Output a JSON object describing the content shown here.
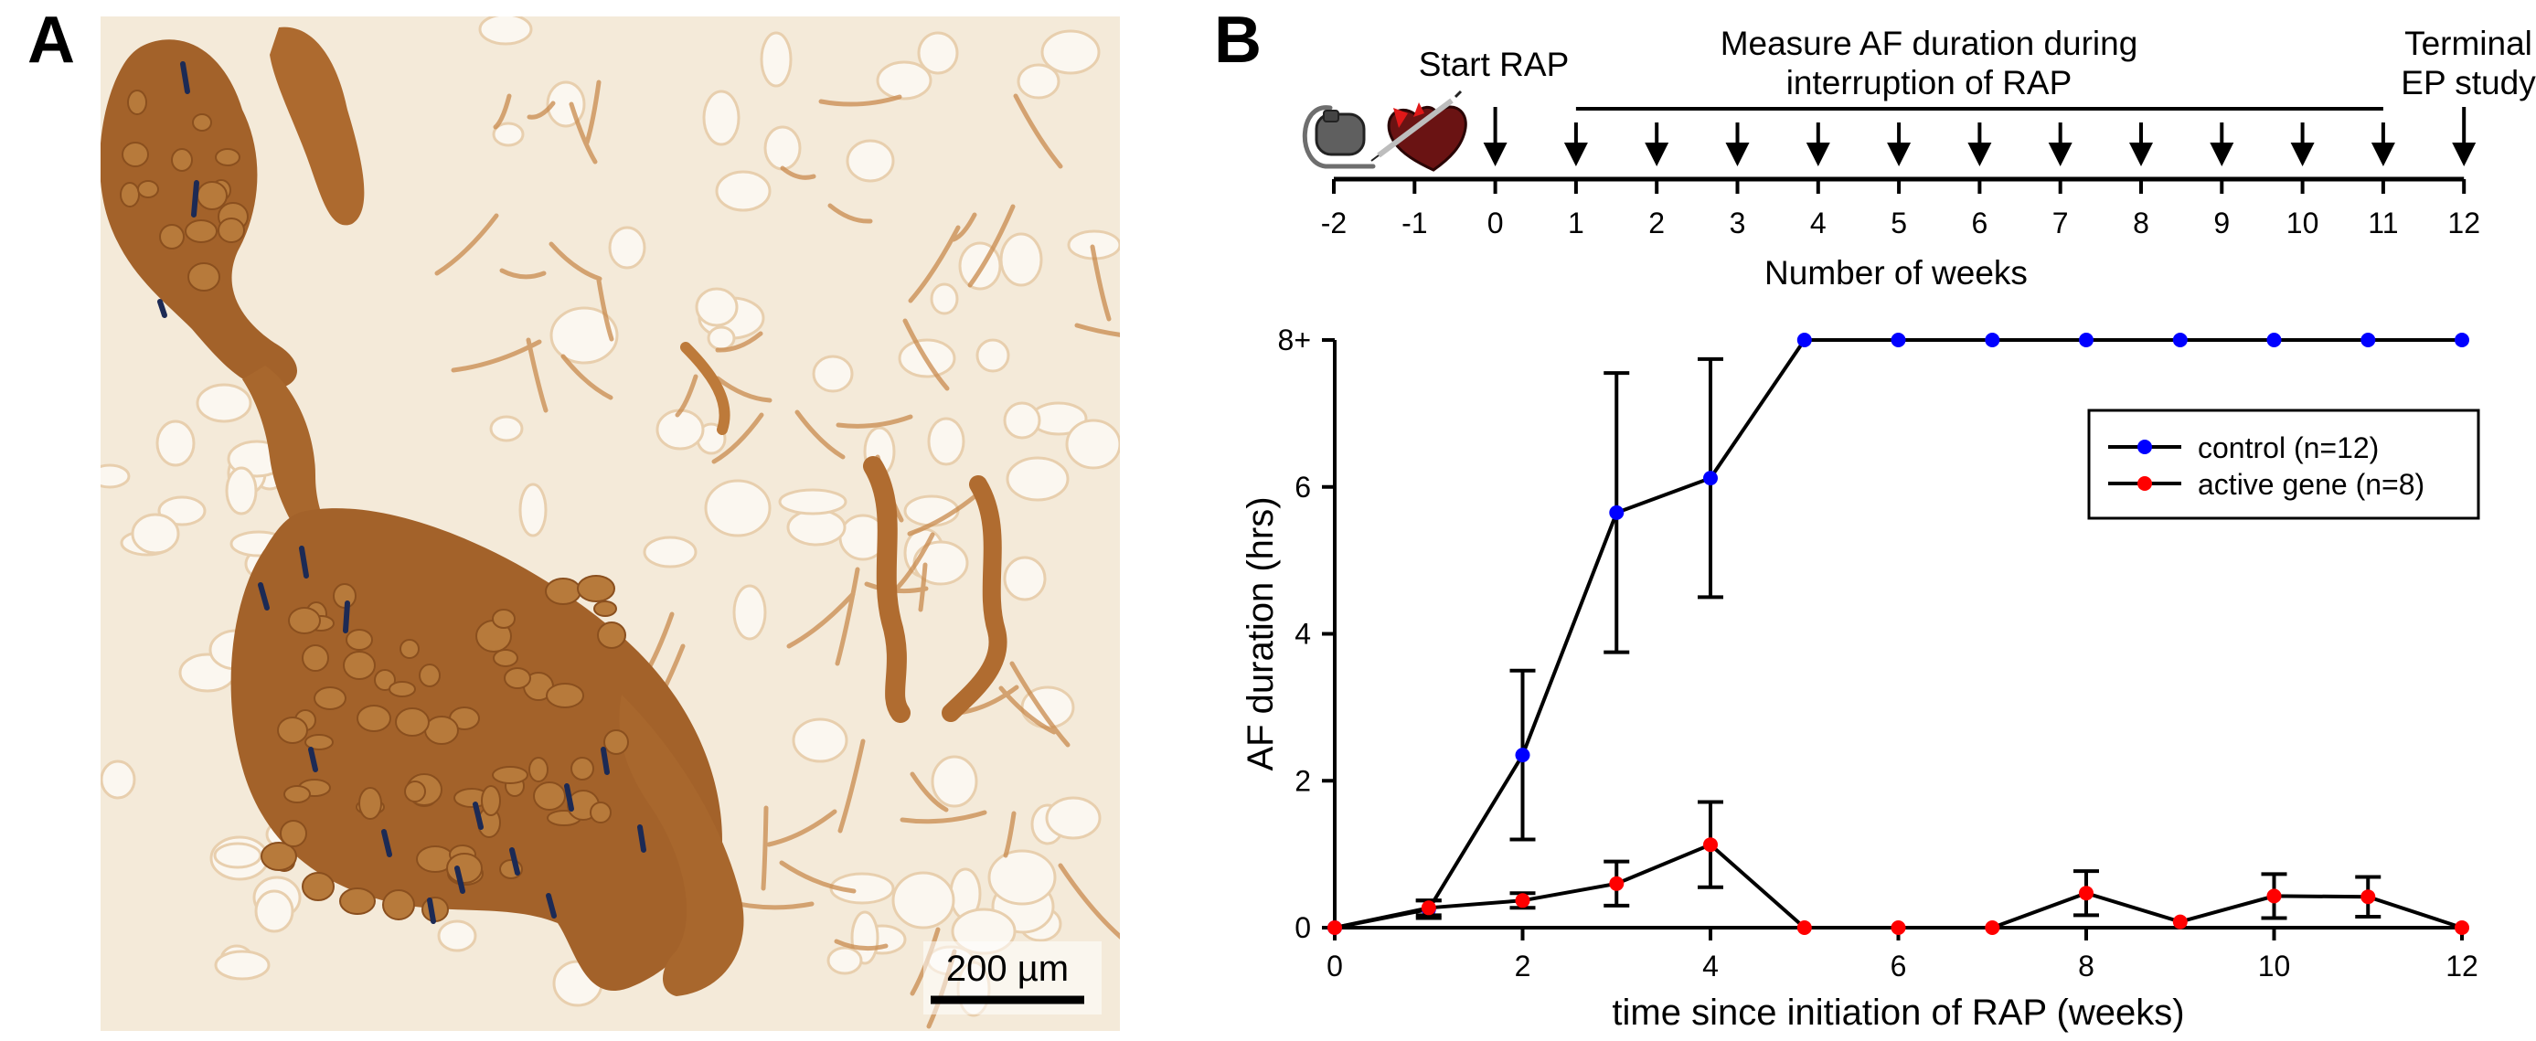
{
  "panel_a": {
    "letter": "A",
    "scale_bar_label": "200 µm",
    "colors": {
      "background": "#f4ead9",
      "tissue": "#a3622a",
      "tissue_dark": "#8a4f1e",
      "stain_blue": "#1c2a55",
      "fat_cell": "#fbf7f0"
    }
  },
  "panel_b": {
    "letter": "B",
    "timeline": {
      "start_label": "Start RAP",
      "measure_label_line1": "Measure AF duration during",
      "measure_label_line2": "interruption of RAP",
      "terminal_label_line1": "Terminal",
      "terminal_label_line2": "EP study",
      "axis_label": "Number of weeks",
      "ticks": [
        "-2",
        "-1",
        "0",
        "1",
        "2",
        "3",
        "4",
        "5",
        "6",
        "7",
        "8",
        "9",
        "10",
        "11",
        "12"
      ],
      "arrow_weeks": [
        0,
        1,
        2,
        3,
        4,
        5,
        6,
        7,
        8,
        9,
        10,
        11,
        12
      ],
      "icons": [
        "pacemaker-icon",
        "heart-injection-icon"
      ]
    }
  },
  "chart_data": {
    "type": "line",
    "title": "",
    "xlabel": "time since initiation of RAP (weeks)",
    "ylabel": "AF duration (hrs)",
    "xlim": [
      0,
      12
    ],
    "ylim": [
      0,
      8
    ],
    "xticks": [
      0,
      2,
      4,
      6,
      8,
      10,
      12
    ],
    "xtick_labels": [
      "0",
      "2",
      "4",
      "6",
      "8",
      "10",
      "12"
    ],
    "yticks": [
      0,
      2,
      4,
      6,
      8
    ],
    "ytick_labels": [
      "0",
      "2",
      "4",
      "6",
      "8+"
    ],
    "grid": false,
    "legend_position": "top-right",
    "series": [
      {
        "name": "control (n=12)",
        "color": "#0000ff",
        "x": [
          0,
          1,
          2,
          3,
          4,
          5,
          6,
          7,
          8,
          9,
          10,
          11,
          12
        ],
        "y": [
          0,
          0.25,
          2.35,
          5.65,
          6.12,
          8,
          8,
          8,
          8,
          8,
          8,
          8,
          8
        ],
        "err": [
          0,
          0.12,
          1.15,
          1.9,
          1.62,
          0,
          0,
          0,
          0,
          0,
          0,
          0,
          0
        ]
      },
      {
        "name": "active gene (n=8)",
        "color": "#ff0000",
        "x": [
          0,
          1,
          2,
          3,
          4,
          5,
          6,
          7,
          8,
          9,
          10,
          11,
          12
        ],
        "y": [
          0,
          0.27,
          0.37,
          0.6,
          1.13,
          0,
          0,
          0,
          0.47,
          0.08,
          0.43,
          0.42,
          0
        ],
        "err": [
          0,
          0.1,
          0.1,
          0.3,
          0.58,
          0,
          0,
          0,
          0.3,
          0,
          0.3,
          0.27,
          0
        ]
      }
    ]
  }
}
